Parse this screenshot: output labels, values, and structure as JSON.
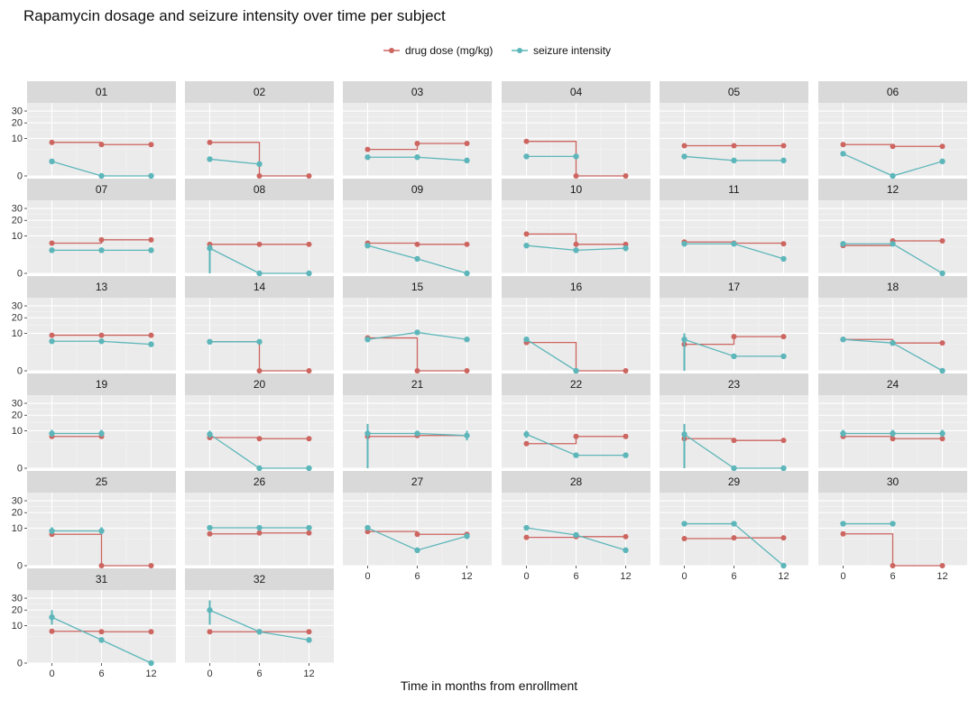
{
  "chart_data": {
    "type": "line",
    "layout": "facet-grid",
    "title": "Rapamycin dosage and seizure intensity over time per subject",
    "xlabel": "Time in months from enrollment",
    "ylabel": "",
    "x_ticks": [
      0,
      6,
      12
    ],
    "xlim": [
      -3,
      15
    ],
    "y_ticks": [
      0,
      10,
      20,
      30
    ],
    "y_scale": "sqrt",
    "ylim": [
      0,
      38
    ],
    "legend": {
      "position": "top",
      "entries": [
        {
          "name": "drug dose (mg/kg)",
          "color": "#CD6560"
        },
        {
          "name": "seizure intensity",
          "color": "#5DB6BA"
        }
      ]
    },
    "panels": [
      {
        "id": "01",
        "dose": [
          [
            0,
            8
          ],
          [
            6,
            7
          ],
          [
            12,
            7
          ]
        ],
        "seizure": [
          [
            0,
            1.5
          ],
          [
            6,
            0
          ],
          [
            12,
            0
          ]
        ],
        "seizure_err": []
      },
      {
        "id": "02",
        "dose": [
          [
            0,
            8
          ],
          [
            6,
            0
          ],
          [
            12,
            0
          ]
        ],
        "seizure": [
          [
            0,
            2
          ],
          [
            6,
            1
          ],
          [
            12,
            null
          ]
        ],
        "seizure_err": []
      },
      {
        "id": "03",
        "dose": [
          [
            0,
            5
          ],
          [
            6,
            7.5
          ],
          [
            12,
            7.5
          ]
        ],
        "seizure": [
          [
            0,
            2.5
          ],
          [
            6,
            2.5
          ],
          [
            12,
            1.7
          ]
        ],
        "seizure_err": []
      },
      {
        "id": "04",
        "dose": [
          [
            0,
            8.5
          ],
          [
            6,
            0
          ],
          [
            12,
            0
          ]
        ],
        "seizure": [
          [
            0,
            2.7
          ],
          [
            6,
            2.7
          ],
          [
            12,
            null
          ]
        ],
        "seizure_err": []
      },
      {
        "id": "05",
        "dose": [
          [
            0,
            6.5
          ],
          [
            6,
            6.5
          ],
          [
            12,
            6.5
          ]
        ],
        "seizure": [
          [
            0,
            2.7
          ],
          [
            6,
            1.7
          ],
          [
            12,
            1.7
          ]
        ],
        "seizure_err": []
      },
      {
        "id": "06",
        "dose": [
          [
            0,
            7
          ],
          [
            6,
            6.2
          ],
          [
            12,
            6.2
          ]
        ],
        "seizure": [
          [
            0,
            3.5
          ],
          [
            6,
            0
          ],
          [
            12,
            1.5
          ]
        ],
        "seizure_err": []
      },
      {
        "id": "07",
        "dose": [
          [
            0,
            6.5
          ],
          [
            6,
            8
          ],
          [
            12,
            8
          ]
        ],
        "seizure": [
          [
            0,
            3.8
          ],
          [
            6,
            3.8
          ],
          [
            12,
            3.8
          ]
        ],
        "seizure_err": []
      },
      {
        "id": "08",
        "dose": [
          [
            0,
            6
          ],
          [
            6,
            6
          ],
          [
            12,
            6
          ]
        ],
        "seizure": [
          [
            0,
            4.5
          ],
          [
            6,
            0
          ],
          [
            12,
            0
          ]
        ],
        "seizure_err": [
          [
            0,
            0,
            6
          ]
        ]
      },
      {
        "id": "09",
        "dose": [
          [
            0,
            6.5
          ],
          [
            6,
            6
          ],
          [
            12,
            6
          ]
        ],
        "seizure": [
          [
            0,
            5.5
          ],
          [
            6,
            1.5
          ],
          [
            12,
            0
          ]
        ],
        "seizure_err": []
      },
      {
        "id": "10",
        "dose": [
          [
            0,
            11
          ],
          [
            6,
            6
          ],
          [
            12,
            6
          ]
        ],
        "seizure": [
          [
            0,
            5.5
          ],
          [
            6,
            3.8
          ],
          [
            12,
            4.5
          ]
        ],
        "seizure_err": [
          [
            12,
            3.5,
            5.5
          ]
        ]
      },
      {
        "id": "11",
        "dose": [
          [
            0,
            7
          ],
          [
            6,
            6.5
          ],
          [
            12,
            6.2
          ]
        ],
        "seizure": [
          [
            0,
            6.2
          ],
          [
            6,
            6.2
          ],
          [
            12,
            1.5
          ]
        ],
        "seizure_err": []
      },
      {
        "id": "12",
        "dose": [
          [
            0,
            5.5
          ],
          [
            6,
            7.5
          ],
          [
            12,
            7.5
          ]
        ],
        "seizure": [
          [
            0,
            6.2
          ],
          [
            6,
            6.2
          ],
          [
            12,
            0
          ]
        ],
        "seizure_err": []
      },
      {
        "id": "13",
        "dose": [
          [
            0,
            9
          ],
          [
            6,
            9
          ],
          [
            12,
            9
          ]
        ],
        "seizure": [
          [
            0,
            6.2
          ],
          [
            6,
            6.2
          ],
          [
            12,
            5
          ]
        ],
        "seizure_err": []
      },
      {
        "id": "14",
        "dose": [
          [
            0,
            6
          ],
          [
            6,
            0
          ],
          [
            12,
            0
          ]
        ],
        "seizure": [
          [
            0,
            6
          ],
          [
            6,
            6
          ],
          [
            12,
            null
          ]
        ],
        "seizure_err": []
      },
      {
        "id": "15",
        "dose": [
          [
            0,
            7.7
          ],
          [
            6,
            0
          ],
          [
            12,
            0
          ]
        ],
        "seizure": [
          [
            0,
            7
          ],
          [
            6,
            10.5
          ],
          [
            12,
            7
          ]
        ],
        "seizure_err": []
      },
      {
        "id": "16",
        "dose": [
          [
            0,
            5.7
          ],
          [
            6,
            0
          ],
          [
            12,
            0
          ]
        ],
        "seizure": [
          [
            0,
            7
          ],
          [
            6,
            0
          ],
          [
            12,
            null
          ]
        ],
        "seizure_err": []
      },
      {
        "id": "17",
        "dose": [
          [
            0,
            5
          ],
          [
            6,
            8.3
          ],
          [
            12,
            8.3
          ]
        ],
        "seizure": [
          [
            0,
            7
          ],
          [
            6,
            1.5
          ],
          [
            12,
            1.5
          ]
        ],
        "seizure_err": [
          [
            0,
            0,
            10
          ]
        ]
      },
      {
        "id": "18",
        "dose": [
          [
            0,
            7
          ],
          [
            6,
            5.5
          ],
          [
            12,
            5.5
          ]
        ],
        "seizure": [
          [
            0,
            7
          ],
          [
            6,
            5.5
          ],
          [
            12,
            0
          ]
        ],
        "seizure_err": []
      },
      {
        "id": "19",
        "dose": [
          [
            0,
            7.2
          ],
          [
            6,
            7.2
          ]
        ],
        "seizure": [
          [
            0,
            8.6
          ],
          [
            6,
            8.6
          ]
        ],
        "seizure_err": [
          [
            0,
            7,
            10.5
          ],
          [
            6,
            7,
            10.5
          ]
        ]
      },
      {
        "id": "20",
        "dose": [
          [
            0,
            6.7
          ],
          [
            6,
            6.2
          ],
          [
            12,
            6.2
          ]
        ],
        "seizure": [
          [
            0,
            8.2
          ],
          [
            6,
            0
          ],
          [
            12,
            0
          ]
        ],
        "seizure_err": [
          [
            0,
            6.5,
            10
          ]
        ]
      },
      {
        "id": "21",
        "dose": [
          [
            0,
            7.2
          ],
          [
            6,
            7.6
          ],
          [
            12,
            7.6
          ]
        ],
        "seizure": [
          [
            0,
            8.6
          ],
          [
            6,
            8.6
          ],
          [
            12,
            7.6
          ]
        ],
        "seizure_err": [
          [
            0,
            0,
            14
          ],
          [
            12,
            5.5,
            10
          ]
        ]
      },
      {
        "id": "22",
        "dose": [
          [
            0,
            4.3
          ],
          [
            6,
            7.2
          ],
          [
            12,
            7.2
          ]
        ],
        "seizure": [
          [
            0,
            8.2
          ],
          [
            6,
            1.2
          ],
          [
            12,
            1.2
          ]
        ],
        "seizure_err": [
          [
            0,
            6.5,
            10
          ]
        ]
      },
      {
        "id": "23",
        "dose": [
          [
            0,
            6.2
          ],
          [
            6,
            5.5
          ],
          [
            12,
            5.5
          ]
        ],
        "seizure": [
          [
            0,
            8.2
          ],
          [
            6,
            0
          ],
          [
            12,
            0
          ]
        ],
        "seizure_err": [
          [
            0,
            0,
            14
          ]
        ]
      },
      {
        "id": "24",
        "dose": [
          [
            0,
            7.2
          ],
          [
            6,
            6.2
          ],
          [
            12,
            6.2
          ]
        ],
        "seizure": [
          [
            0,
            8.6
          ],
          [
            6,
            8.6
          ],
          [
            12,
            8.6
          ]
        ],
        "seizure_err": [
          [
            0,
            7,
            10.5
          ],
          [
            6,
            7,
            10.5
          ],
          [
            12,
            7,
            10.5
          ]
        ]
      },
      {
        "id": "25",
        "dose": [
          [
            0,
            7
          ],
          [
            6,
            0
          ],
          [
            12,
            0
          ]
        ],
        "seizure": [
          [
            0,
            8.6
          ],
          [
            6,
            8.6
          ],
          [
            12,
            null
          ]
        ],
        "seizure_err": [
          [
            0,
            7,
            10.5
          ],
          [
            6,
            7,
            10.5
          ]
        ]
      },
      {
        "id": "26",
        "dose": [
          [
            0,
            7.2
          ],
          [
            6,
            7.6
          ],
          [
            12,
            7.6
          ]
        ],
        "seizure": [
          [
            0,
            10.2
          ],
          [
            6,
            10.2
          ],
          [
            12,
            10.2
          ]
        ],
        "seizure_err": []
      },
      {
        "id": "27",
        "dose": [
          [
            0,
            8.3
          ],
          [
            6,
            7
          ],
          [
            12,
            7
          ]
        ],
        "seizure": [
          [
            0,
            10.2
          ],
          [
            6,
            1.7
          ],
          [
            12,
            6.2
          ]
        ],
        "seizure_err": [
          [
            12,
            5,
            7.5
          ]
        ]
      },
      {
        "id": "28",
        "dose": [
          [
            0,
            5.7
          ],
          [
            6,
            6
          ],
          [
            12,
            6
          ]
        ],
        "seizure": [
          [
            0,
            10.2
          ],
          [
            6,
            6.7
          ],
          [
            12,
            1.7
          ]
        ],
        "seizure_err": []
      },
      {
        "id": "29",
        "dose": [
          [
            0,
            5.2
          ],
          [
            6,
            5.5
          ],
          [
            12,
            5.5
          ]
        ],
        "seizure": [
          [
            0,
            12.5
          ],
          [
            6,
            12.5
          ],
          [
            12,
            0
          ]
        ],
        "seizure_err": [
          [
            0,
            11,
            14
          ],
          [
            6,
            11,
            14
          ]
        ]
      },
      {
        "id": "30",
        "dose": [
          [
            0,
            7.2
          ],
          [
            6,
            0
          ],
          [
            12,
            0
          ]
        ],
        "seizure": [
          [
            0,
            12.5
          ],
          [
            6,
            12.5
          ],
          [
            12,
            null
          ]
        ],
        "seizure_err": [
          [
            0,
            11,
            14
          ],
          [
            6,
            11,
            14
          ]
        ]
      },
      {
        "id": "31",
        "dose": [
          [
            0,
            7.2
          ],
          [
            6,
            7
          ],
          [
            12,
            7
          ]
        ],
        "seizure": [
          [
            0,
            15
          ],
          [
            6,
            3.8
          ],
          [
            12,
            0
          ]
        ],
        "seizure_err": [
          [
            0,
            10.5,
            20
          ]
        ]
      },
      {
        "id": "32",
        "dose": [
          [
            0,
            7
          ],
          [
            6,
            7
          ],
          [
            12,
            7
          ]
        ],
        "seizure": [
          [
            0,
            20
          ],
          [
            6,
            7
          ],
          [
            12,
            3.8
          ]
        ],
        "seizure_err": [
          [
            0,
            10.5,
            28
          ]
        ]
      }
    ]
  }
}
